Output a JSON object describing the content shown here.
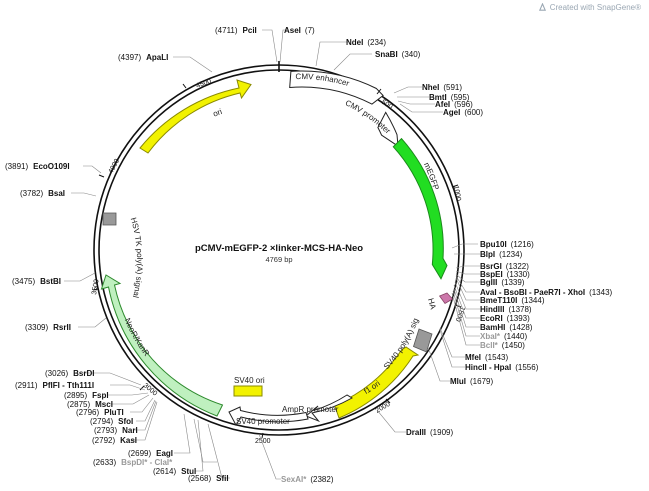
{
  "header": {
    "text": "Created with SnapGene®",
    "logo_icon": "snapgene-logo-icon"
  },
  "plasmid": {
    "name": "pCMV-mEGFP-2 ×linker-MCS-HA-Neo",
    "length_text": "4769 bp"
  },
  "ticks": [
    "500",
    "1000",
    "1500",
    "2000",
    "2500",
    "3000",
    "3500",
    "4000",
    "4500"
  ],
  "features": [
    {
      "id": "cmv-enhancer",
      "label": "CMV enhancer",
      "color": "#ffffff"
    },
    {
      "id": "cmv-promoter",
      "label": "CMV promoter",
      "color": "#ffffff"
    },
    {
      "id": "megfp",
      "label": "mEGFP",
      "color": "#22dd22"
    },
    {
      "id": "ha",
      "label": "HA",
      "color": "#cc77aa"
    },
    {
      "id": "sv40-polya",
      "label": "SV40 poly(A) signal",
      "color": "#999999"
    },
    {
      "id": "f1-ori",
      "label": "f1 ori",
      "color": "#f2f200"
    },
    {
      "id": "ampr-promoter",
      "label": "AmpR promoter",
      "color": "#ffffff"
    },
    {
      "id": "sv40-promoter",
      "label": "SV40 promoter",
      "color": "#ffffff"
    },
    {
      "id": "sv40-ori",
      "label": "SV40 ori",
      "color": "#f2f200"
    },
    {
      "id": "neor-kanr",
      "label": "NeoR/KanR",
      "color": "#bff0bf"
    },
    {
      "id": "hsv-tk-polya",
      "label": "HSV TK poly(A) signal",
      "color": "#999999"
    },
    {
      "id": "ori",
      "label": "ori",
      "color": "#f2f200"
    }
  ],
  "sites": [
    {
      "id": "pcii",
      "pos": "(4711)",
      "name": "PciI",
      "gray": false
    },
    {
      "id": "asei",
      "pos": "(7)",
      "name": "AseI",
      "gray": false
    },
    {
      "id": "ndei",
      "pos": "(234)",
      "name": "NdeI",
      "gray": false
    },
    {
      "id": "snabi",
      "pos": "(340)",
      "name": "SnaBI",
      "gray": false
    },
    {
      "id": "apali",
      "pos": "(4397)",
      "name": "ApaLI",
      "gray": false
    },
    {
      "id": "nhei",
      "pos": "(591)",
      "name": "NheI",
      "gray": false
    },
    {
      "id": "bmti",
      "pos": "(595)",
      "name": "BmtI",
      "gray": false
    },
    {
      "id": "afei",
      "pos": "(596)",
      "name": "AfeI",
      "gray": false
    },
    {
      "id": "agei",
      "pos": "(600)",
      "name": "AgeI",
      "gray": false
    },
    {
      "id": "eco0109i",
      "pos": "(3891)",
      "name": "EcoO109I",
      "gray": false
    },
    {
      "id": "bsai",
      "pos": "(3782)",
      "name": "BsaI",
      "gray": false
    },
    {
      "id": "bpu10i",
      "pos": "(1216)",
      "name": "Bpu10I",
      "gray": false
    },
    {
      "id": "blpi",
      "pos": "(1234)",
      "name": "BlpI",
      "gray": false
    },
    {
      "id": "bsrgi",
      "pos": "(1322)",
      "name": "BsrGI",
      "gray": false
    },
    {
      "id": "bspei",
      "pos": "(1330)",
      "name": "BspEI",
      "gray": false
    },
    {
      "id": "bglii",
      "pos": "(1339)",
      "name": "BglII",
      "gray": false
    },
    {
      "id": "ava-multi",
      "pos": "(1343)",
      "name": "AvaI - BsoBI - PaeR7I - XhoI",
      "gray": false
    },
    {
      "id": "bmet110i",
      "pos": "(1344)",
      "name": "BmeT110I",
      "gray": false
    },
    {
      "id": "hindiii",
      "pos": "(1378)",
      "name": "HindIII",
      "gray": false
    },
    {
      "id": "ecori",
      "pos": "(1393)",
      "name": "EcoRI",
      "gray": false
    },
    {
      "id": "bamhi",
      "pos": "(1428)",
      "name": "BamHI",
      "gray": false
    },
    {
      "id": "xbai",
      "pos": "(1440)",
      "name": "XbaI*",
      "gray": true
    },
    {
      "id": "bcli",
      "pos": "(1450)",
      "name": "BclI*",
      "gray": true
    },
    {
      "id": "bstbi",
      "pos": "(3475)",
      "name": "BstBI",
      "gray": false
    },
    {
      "id": "rsrii",
      "pos": "(3309)",
      "name": "RsrII",
      "gray": false
    },
    {
      "id": "mfei",
      "pos": "(1543)",
      "name": "MfeI",
      "gray": false
    },
    {
      "id": "hincii-hpai",
      "pos": "(1556)",
      "name": "HincII - HpaI",
      "gray": false
    },
    {
      "id": "mlui",
      "pos": "(1679)",
      "name": "MluI",
      "gray": false
    },
    {
      "id": "bsrdi",
      "pos": "(3026)",
      "name": "BsrDI",
      "gray": false
    },
    {
      "id": "pflfi-tth111i",
      "pos": "(2911)",
      "name": "PflFI - Tth111I",
      "gray": false
    },
    {
      "id": "fspi",
      "pos": "(2895)",
      "name": "FspI",
      "gray": false
    },
    {
      "id": "msci",
      "pos": "(2875)",
      "name": "MscI",
      "gray": false
    },
    {
      "id": "pluti",
      "pos": "(2796)",
      "name": "PluTI",
      "gray": false
    },
    {
      "id": "sfoi",
      "pos": "(2794)",
      "name": "SfoI",
      "gray": false
    },
    {
      "id": "nari",
      "pos": "(2793)",
      "name": "NarI",
      "gray": false
    },
    {
      "id": "kasi",
      "pos": "(2792)",
      "name": "KasI",
      "gray": false
    },
    {
      "id": "eagi",
      "pos": "(2699)",
      "name": "EagI",
      "gray": false
    },
    {
      "id": "bspdi-clai",
      "pos": "(2633)",
      "name": "BspDI* - ClaI*",
      "gray": true
    },
    {
      "id": "stui",
      "pos": "(2614)",
      "name": "StuI",
      "gray": false
    },
    {
      "id": "sfii",
      "pos": "(2568)",
      "name": "SfiI",
      "gray": false
    },
    {
      "id": "sexai",
      "pos": "(2382)",
      "name": "SexAI*",
      "gray": true
    },
    {
      "id": "draiii",
      "pos": "(1909)",
      "name": "DraIII",
      "gray": false
    }
  ]
}
